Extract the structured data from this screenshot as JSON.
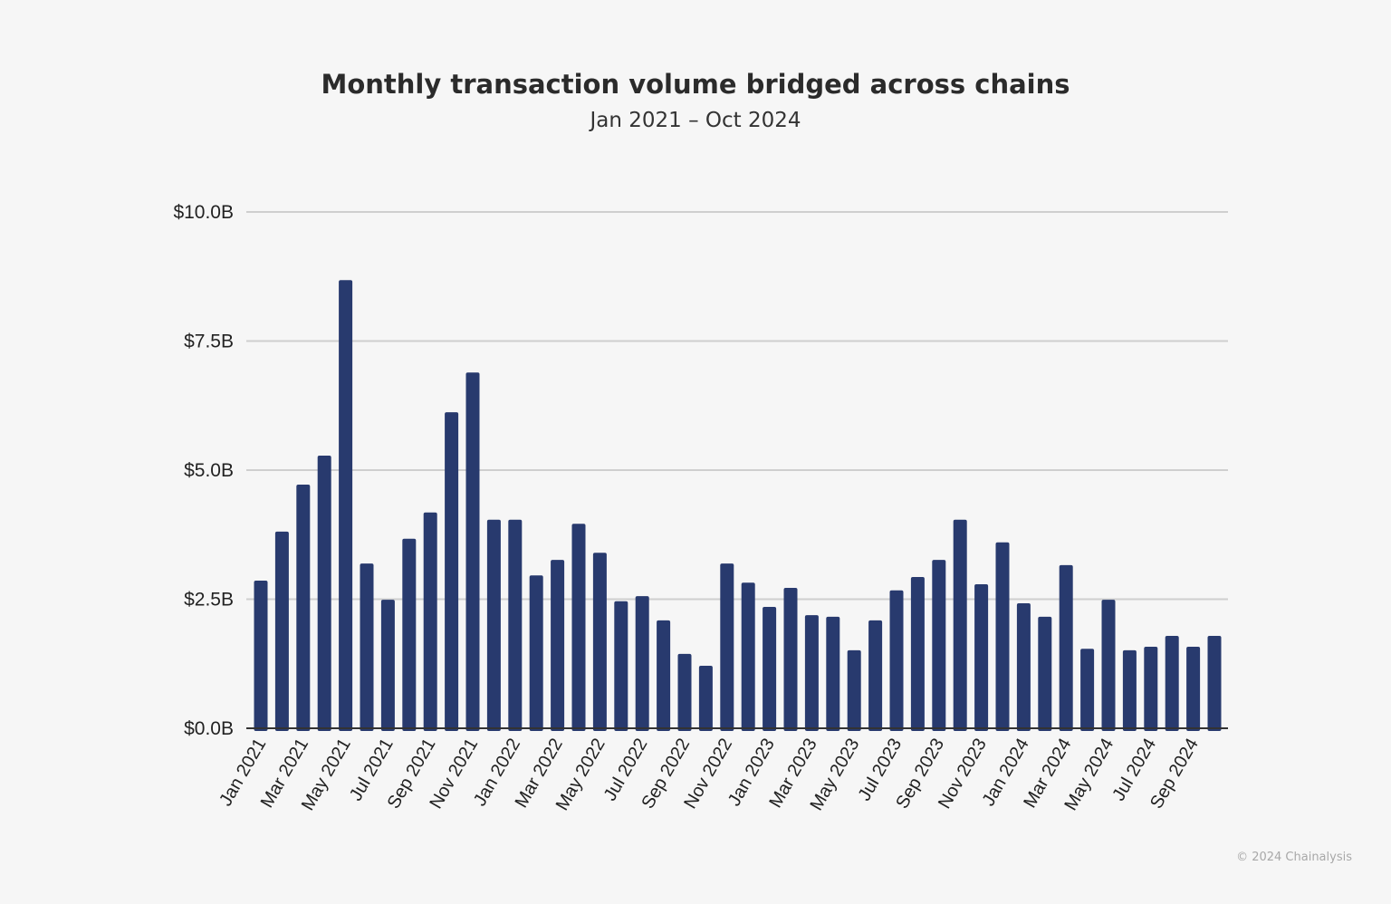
{
  "chart_data": {
    "type": "bar",
    "title": "Monthly transaction volume bridged across chains",
    "subtitle": "Jan 2021 – Oct 2024",
    "xlabel": "",
    "ylabel": "",
    "ylim": [
      0,
      10
    ],
    "yticks": [
      0,
      2.5,
      5,
      7.5,
      10
    ],
    "ytick_labels": [
      "$0.0B",
      "$2.5B",
      "$5.0B",
      "$7.5B",
      "$10.0B"
    ],
    "grid": true,
    "bar_color": "#283a6e",
    "categories": [
      "Jan 2021",
      "Feb 2021",
      "Mar 2021",
      "Apr 2021",
      "May 2021",
      "Jun 2021",
      "Jul 2021",
      "Aug 2021",
      "Sep 2021",
      "Oct 2021",
      "Nov 2021",
      "Dec 2021",
      "Jan 2022",
      "Feb 2022",
      "Mar 2022",
      "Apr 2022",
      "May 2022",
      "Jun 2022",
      "Jul 2022",
      "Aug 2022",
      "Sep 2022",
      "Oct 2022",
      "Nov 2022",
      "Dec 2022",
      "Jan 2023",
      "Feb 2023",
      "Mar 2023",
      "Apr 2023",
      "May 2023",
      "Jun 2023",
      "Jul 2023",
      "Aug 2023",
      "Sep 2023",
      "Oct 2023",
      "Nov 2023",
      "Dec 2023",
      "Jan 2024",
      "Feb 2024",
      "Mar 2024",
      "Apr 2024",
      "May 2024",
      "Jun 2024",
      "Jul 2024",
      "Aug 2024",
      "Sep 2024",
      "Oct 2024"
    ],
    "xtick_labels": [
      "Jan 2021",
      "Mar 2021",
      "May 2021",
      "Jul 2021",
      "Sep 2021",
      "Nov 2021",
      "Jan 2022",
      "Mar 2022",
      "May 2022",
      "Jul 2022",
      "Sep 2022",
      "Nov 2022",
      "Jan 2023",
      "Mar 2023",
      "May 2023",
      "Jul 2023",
      "Sep 2023",
      "Nov 2023",
      "Jan 2024",
      "Mar 2024",
      "May 2024",
      "Jul 2024",
      "Sep 2024"
    ],
    "values": [
      2.86,
      3.81,
      4.72,
      5.28,
      8.68,
      3.19,
      2.49,
      3.67,
      4.18,
      6.12,
      6.89,
      4.04,
      4.04,
      2.96,
      3.26,
      3.96,
      3.4,
      2.46,
      2.56,
      2.09,
      1.44,
      1.21,
      3.19,
      2.82,
      2.35,
      2.72,
      2.19,
      2.16,
      1.51,
      2.09,
      2.67,
      2.93,
      3.26,
      4.04,
      2.79,
      3.6,
      2.42,
      2.16,
      3.16,
      1.54,
      2.49,
      1.51,
      1.58,
      1.79,
      1.58,
      1.79
    ]
  },
  "credit": "© 2024 Chainalysis"
}
